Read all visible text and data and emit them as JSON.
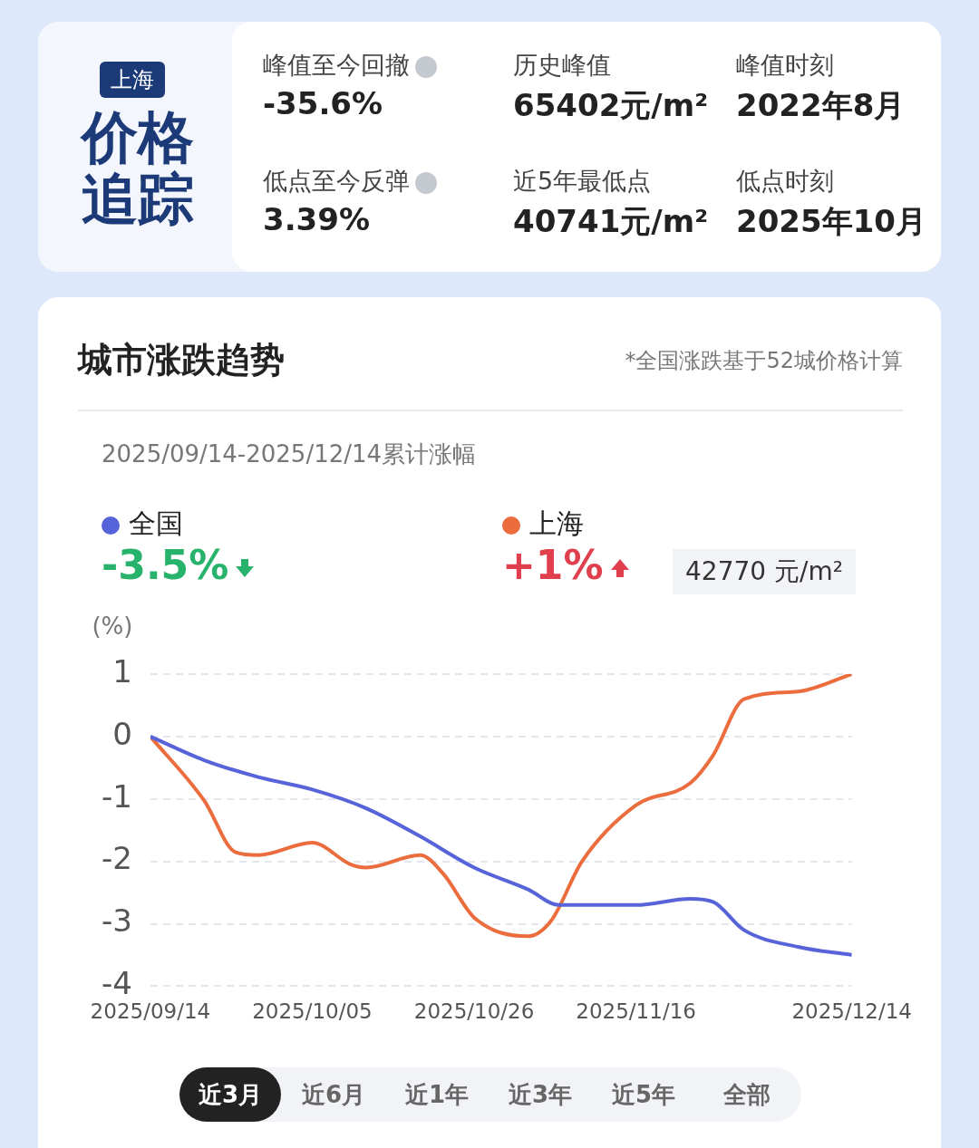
{
  "chart_data": [
    {
      "type": "other",
      "annotations": [
        "上海",
        "价格追踪",
        "峰值至今回撤",
        "-35.6%",
        "历史峰值",
        "65402元/m²",
        "峰值时刻",
        "2022年8月",
        "低点至今反弹",
        "3.39%",
        "近5年最低点",
        "40741元/m²",
        "低点时刻",
        "2025年10月"
      ]
    },
    {
      "type": "line",
      "title": "城市涨跌趋势",
      "subtitle": "2025/09/14-2025/12/14累计涨幅",
      "ylabel": "(%)",
      "annotations": [
        "*全国涨跌基于52城价格计算",
        "-3.5%",
        "+1%",
        "42770 元/m²",
        "近3月",
        "近6月",
        "近1年",
        "近3年",
        "近5年",
        "全部"
      ],
      "series": [
        {
          "name": "全国",
          "color": "#5763d8",
          "x": [
            "2025-09-14",
            "2025-09-21",
            "2025-09-28",
            "2025-10-05",
            "2025-10-12",
            "2025-10-19",
            "2025-10-26",
            "2025-11-02",
            "2025-11-06",
            "2025-11-09",
            "2025-11-16",
            "2025-11-23",
            "2025-11-26",
            "2025-11-30",
            "2025-12-07",
            "2025-12-14"
          ],
          "values": [
            0,
            -0.38,
            -0.65,
            -0.85,
            -1.15,
            -1.6,
            -2.1,
            -2.45,
            -2.7,
            -2.7,
            -2.7,
            -2.6,
            -2.65,
            -3.1,
            -3.37,
            -3.5
          ]
        },
        {
          "name": "上海",
          "color": "#eb6d3e",
          "x": [
            "2025-09-14",
            "2025-09-21",
            "2025-09-25",
            "2025-09-28",
            "2025-10-05",
            "2025-10-10",
            "2025-10-12",
            "2025-10-19",
            "2025-10-22",
            "2025-10-26",
            "2025-11-02",
            "2025-11-05",
            "2025-11-09",
            "2025-11-16",
            "2025-11-23",
            "2025-11-26",
            "2025-11-30",
            "2025-12-07",
            "2025-12-14"
          ],
          "values": [
            0,
            -1.03,
            -1.85,
            -1.9,
            -1.7,
            -2.05,
            -2.1,
            -1.9,
            -2.2,
            -2.9,
            -3.2,
            -2.95,
            -2.0,
            -1.1,
            -0.75,
            -0.3,
            0.6,
            0.72,
            1.0
          ]
        }
      ],
      "xlim": [
        "2025-09-14",
        "2025-12-14"
      ],
      "xticks": [
        {
          "value": "2025-09-14",
          "label": "2025/09/14"
        },
        {
          "value": "2025-10-05",
          "label": "2025/10/05"
        },
        {
          "value": "2025-10-26",
          "label": "2025/10/26"
        },
        {
          "value": "2025-11-16",
          "label": "2025/11/16"
        },
        {
          "value": "2025-12-14",
          "label": "2025/12/14"
        }
      ],
      "ylim": [
        -4,
        1
      ],
      "yticks": [
        -4,
        -3,
        -2,
        -1,
        0,
        1
      ],
      "grid": "y",
      "legend": "top left",
      "marker": "none",
      "line_style": "solid"
    }
  ]
}
